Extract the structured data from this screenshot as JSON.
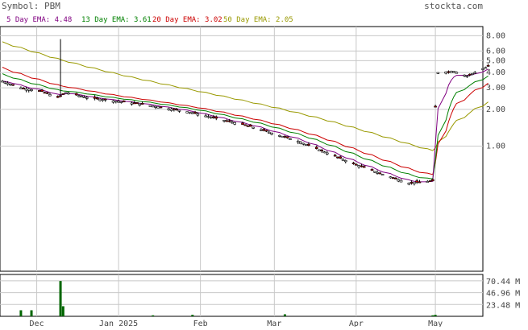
{
  "header": {
    "symbol_label": "Symbol: PBM",
    "site": "stockta.com"
  },
  "legend": [
    {
      "label": "5 Day EMA:",
      "value": "4.48",
      "color": "#800080"
    },
    {
      "label": "13 Day EMA:",
      "value": "3.61",
      "color": "#008000"
    },
    {
      "label": "20 Day EMA:",
      "value": "3.02",
      "color": "#cc0000"
    },
    {
      "label": "50 Day EMA:",
      "value": "2.05",
      "color": "#999900"
    }
  ],
  "chart_data": {
    "type": "candlestick",
    "symbol": "PBM",
    "price_scale": "log",
    "price_ticks": [
      "8.00",
      "6.00",
      "5.00",
      "4.00",
      "3.00",
      "2.00",
      "1.00"
    ],
    "volume_ticks": [
      "70.44 M",
      "46.96 M",
      "23.48 M"
    ],
    "x_ticks": [
      "Dec",
      "Jan 2025",
      "Feb",
      "Mar",
      "Apr",
      "May"
    ],
    "grid": true,
    "volume_bars": [
      {
        "date": "2024-11-25",
        "volume_m": 12
      },
      {
        "date": "2024-11-29",
        "volume_m": 12
      },
      {
        "date": "2024-12-10",
        "volume_m": 70
      },
      {
        "date": "2024-12-11",
        "volume_m": 20
      },
      {
        "date": "2025-01-14",
        "volume_m": 2
      },
      {
        "date": "2025-01-29",
        "volume_m": 3
      },
      {
        "date": "2025-03-05",
        "volume_m": 4
      },
      {
        "date": "2025-04-30",
        "volume_m": 2
      },
      {
        "date": "2025-05-01",
        "volume_m": 3
      }
    ],
    "ema_colors": {
      "ema5": "#800080",
      "ema13": "#008000",
      "ema20": "#cc0000",
      "ema50": "#999900"
    },
    "candle_colors": {
      "up": "#ffffff",
      "down": "#cc0000",
      "wick": "#000000"
    },
    "volume_color": "#006600"
  }
}
